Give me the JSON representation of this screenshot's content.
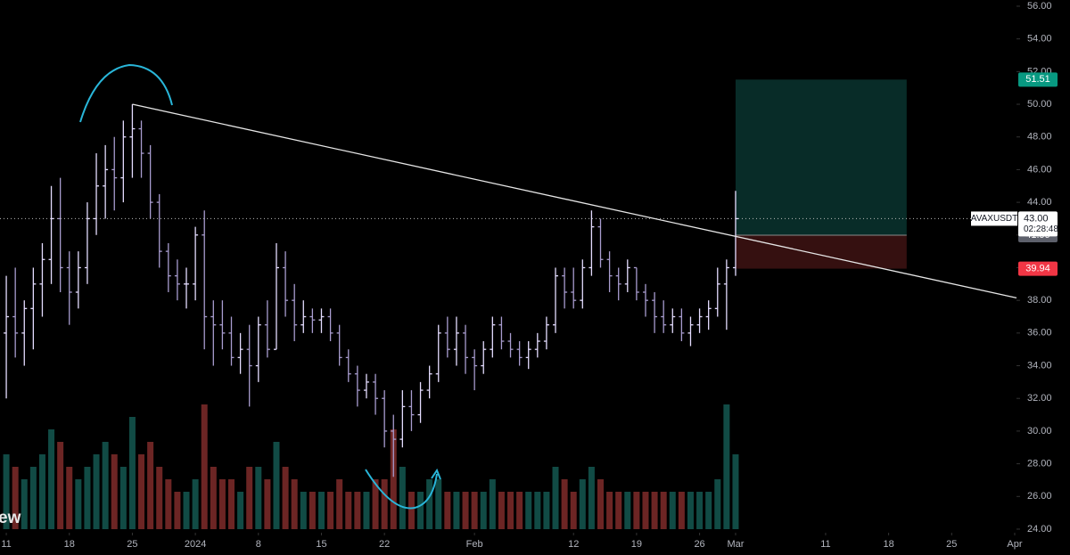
{
  "chart_data": {
    "type": "candlestick",
    "x": [
      0,
      1,
      2,
      3,
      4,
      5,
      6,
      7,
      8,
      9,
      10,
      11,
      12,
      13,
      14,
      15,
      16,
      17,
      18,
      19,
      20,
      21,
      22,
      23,
      24,
      25,
      26,
      27,
      28,
      29,
      30,
      31,
      32,
      33,
      34,
      35,
      36,
      37,
      38,
      39,
      40,
      41,
      42,
      43,
      44,
      45,
      46,
      47,
      48,
      49,
      50,
      51,
      52,
      53,
      54,
      55,
      56,
      57,
      58,
      59,
      60,
      61,
      62,
      63,
      64,
      65,
      66,
      67,
      68,
      69,
      70,
      71,
      72,
      73,
      74,
      75,
      76,
      77,
      78,
      79,
      80,
      81
    ],
    "open": [
      36,
      37,
      36,
      37.5,
      39,
      40.5,
      43,
      40,
      38.5,
      40,
      43,
      45,
      46,
      45.5,
      48,
      48.5,
      47,
      44,
      41,
      39.5,
      39,
      39,
      42,
      37,
      36.5,
      36,
      34.5,
      35,
      34,
      36.5,
      35,
      40,
      38,
      36.5,
      37,
      36.8,
      37,
      36,
      34.5,
      33.5,
      32.5,
      33,
      32,
      30,
      29.5,
      31.5,
      31,
      32.5,
      33.5,
      36,
      35,
      36,
      34.5,
      34,
      35,
      36.5,
      35.5,
      35,
      34.5,
      35,
      35.5,
      36.5,
      39.5,
      38.5,
      38,
      40,
      42.5,
      40.5,
      39.5,
      39,
      40,
      38.5,
      38,
      37,
      36.5,
      37,
      36,
      36.5,
      37,
      37.5,
      39,
      40
    ],
    "high": [
      39.5,
      40,
      38,
      40,
      41.5,
      45,
      45.5,
      41,
      41,
      44,
      47,
      47.5,
      48,
      49,
      50,
      49,
      47.5,
      44.5,
      41.5,
      40.5,
      40,
      42.5,
      43.5,
      38,
      38,
      37,
      36,
      36.5,
      37,
      38,
      41.5,
      41,
      39,
      38,
      37.5,
      37.5,
      37.5,
      36.5,
      35,
      34,
      33.5,
      33.5,
      32.5,
      31,
      32.5,
      32.5,
      33,
      34,
      36.5,
      37,
      37,
      36.5,
      35,
      35.5,
      37,
      37,
      36,
      35.5,
      35.5,
      36,
      37,
      40,
      40,
      40,
      40.5,
      43.5,
      43,
      41,
      40,
      40.5,
      40,
      39,
      38.5,
      38,
      37.5,
      37.5,
      37,
      37.5,
      38,
      40,
      40.5,
      44.7
    ],
    "low": [
      32,
      34.5,
      34,
      35,
      37,
      39,
      38.5,
      36.5,
      37.5,
      39,
      42,
      43,
      43.5,
      44,
      45.5,
      45.5,
      43,
      40,
      38.5,
      38,
      37.5,
      38,
      35,
      34,
      35,
      34,
      33.5,
      31.5,
      33,
      34.5,
      35,
      37,
      35.5,
      36,
      36,
      36,
      35.5,
      34,
      33,
      31.5,
      32,
      31,
      29,
      27.2,
      29,
      30,
      30.5,
      32,
      33,
      34.5,
      34,
      33.5,
      32.5,
      33.5,
      34.5,
      35,
      34.5,
      34,
      33.8,
      34.5,
      35,
      36,
      37.5,
      37.5,
      37.5,
      39.5,
      40,
      38.5,
      38,
      38.5,
      38,
      37,
      36,
      36,
      36,
      35.5,
      35.2,
      36,
      36.2,
      37,
      36.2,
      39.5
    ],
    "close": [
      37,
      36,
      37.5,
      39,
      40.5,
      43,
      40,
      38.5,
      40,
      43,
      45,
      46,
      45.5,
      48,
      48.5,
      47,
      44,
      41,
      39.5,
      39,
      39,
      42,
      37,
      36.5,
      36,
      34.5,
      35,
      34,
      36.5,
      35,
      40,
      38,
      36.5,
      37,
      36.8,
      37,
      36,
      34.5,
      33.5,
      32.5,
      33,
      32,
      30,
      29.5,
      31.5,
      31,
      32.5,
      33.5,
      36,
      35,
      36,
      34.5,
      34,
      35,
      36.5,
      35.5,
      35,
      34.5,
      35,
      35.5,
      36.5,
      39.5,
      38.5,
      38,
      40,
      42.5,
      40.5,
      39.5,
      39,
      40,
      38.5,
      38,
      37,
      36.5,
      37,
      36,
      36.5,
      37,
      37.5,
      39,
      40,
      43
    ],
    "volume": [
      6,
      5,
      4,
      5,
      6,
      8,
      7,
      5,
      4,
      5,
      6,
      7,
      6,
      5,
      9,
      6,
      7,
      5,
      4,
      3,
      3,
      4,
      10,
      5,
      4,
      4,
      3,
      5,
      5,
      4,
      7,
      5,
      4,
      3,
      3,
      3,
      3,
      4,
      3,
      3,
      3,
      4,
      4,
      8,
      5,
      3,
      3,
      4,
      4,
      3,
      3,
      3,
      3,
      3,
      4,
      3,
      3,
      3,
      3,
      3,
      3,
      5,
      4,
      3,
      4,
      5,
      4,
      3,
      3,
      3,
      3,
      3,
      3,
      3,
      3,
      3,
      3,
      3,
      3,
      4,
      10,
      6
    ],
    "up_color": "#e4dcff",
    "down_color": "#a89ccf",
    "volume_up_color": "#26a69a",
    "volume_down_color": "#ef5350",
    "xlim": [
      -0.7,
      112.2
    ],
    "ylim": [
      23.78,
      56.38
    ],
    "xticks": [
      {
        "value": 0,
        "label": "11"
      },
      {
        "value": 7,
        "label": "18"
      },
      {
        "value": 14,
        "label": "25"
      },
      {
        "value": 21,
        "label": "2024"
      },
      {
        "value": 28,
        "label": "8"
      },
      {
        "value": 35,
        "label": "15"
      },
      {
        "value": 42,
        "label": "22"
      },
      {
        "value": 52,
        "label": "Feb"
      },
      {
        "value": 63,
        "label": "12"
      },
      {
        "value": 70,
        "label": "19"
      },
      {
        "value": 77,
        "label": "26"
      },
      {
        "value": 81,
        "label": "Mar"
      },
      {
        "value": 91,
        "label": "11"
      },
      {
        "value": 98,
        "label": "18"
      },
      {
        "value": 105,
        "label": "25"
      },
      {
        "value": 112,
        "label": "Apr"
      }
    ],
    "yticks": [
      {
        "value": 56,
        "label": "56.00"
      },
      {
        "value": 54,
        "label": "54.00"
      },
      {
        "value": 52,
        "label": "52.00"
      },
      {
        "value": 50,
        "label": "50.00"
      },
      {
        "value": 48,
        "label": "48.00"
      },
      {
        "value": 46,
        "label": "46.00"
      },
      {
        "value": 44,
        "label": "44.00"
      },
      {
        "value": 42,
        "label": "42.00"
      },
      {
        "value": 40,
        "label": "40.00"
      },
      {
        "value": 38,
        "label": "38.00"
      },
      {
        "value": 36,
        "label": "36.00"
      },
      {
        "value": 34,
        "label": "34.00"
      },
      {
        "value": 32,
        "label": "32.00"
      },
      {
        "value": 30,
        "label": "30.00"
      },
      {
        "value": 28,
        "label": "28.00"
      },
      {
        "value": 26,
        "label": "26.00"
      },
      {
        "value": 24,
        "label": "24.00"
      }
    ],
    "trendline": {
      "x": [
        14,
        112.2
      ],
      "y": [
        50,
        38.15
      ],
      "color": "#e6e6e6"
    },
    "position": {
      "start": 81,
      "end": 100,
      "target": 51.51,
      "entry": 41.99,
      "stop": 39.94
    },
    "last_price": {
      "symbol": "AVAXUSDT",
      "value": 43,
      "label": "43.00",
      "countdown": "02:28:48"
    },
    "watermark": "ew"
  }
}
